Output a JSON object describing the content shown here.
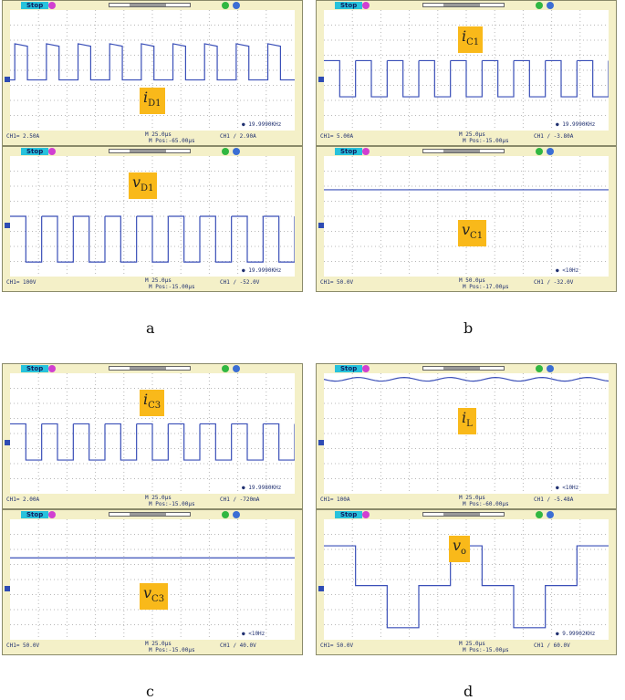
{
  "captions": [
    "a",
    "b",
    "c",
    "d"
  ],
  "status": "Stop",
  "scopes": [
    {
      "id": "a1",
      "label_main": "i",
      "label_sub": "D1",
      "ch": "CH1= 2.50A",
      "m": "M 25.0μs",
      "ch_trig": "CH1 ∕ 2.90A",
      "mpos": "M Pos:-65.00μs",
      "freq": "19.9990KHz",
      "wave": "square_current"
    },
    {
      "id": "a2",
      "label_main": "v",
      "label_sub": "D1",
      "ch": "CH1= 100V",
      "m": "M 25.0μs",
      "ch_trig": "CH1 ∕ -52.0V",
      "mpos": "M Pos:-15.00μs",
      "freq": "19.9990KHz",
      "wave": "square_voltage"
    },
    {
      "id": "b1",
      "label_main": "i",
      "label_sub": "C1",
      "ch": "CH1= 5.00A",
      "m": "M 25.0μs",
      "ch_trig": "CH1 ∕ -3.80A",
      "mpos": "M Pos:-15.00μs",
      "freq": "19.9990KHz",
      "wave": "square_cap"
    },
    {
      "id": "b2",
      "label_main": "v",
      "label_sub": "C1",
      "ch": "CH1= 50.0V",
      "m": "M 50.0μs",
      "ch_trig": "CH1 ∕ -32.0V",
      "mpos": "M Pos:-17.00μs",
      "freq": "<10Hz",
      "wave": "flat_high"
    },
    {
      "id": "c1",
      "label_main": "i",
      "label_sub": "C3",
      "ch": "CH1= 2.00A",
      "m": "M 25.0μs",
      "ch_trig": "CH1 ∕ -720mA",
      "mpos": "M Pos:-15.00μs",
      "freq": "19.9980KHz",
      "wave": "square_cap"
    },
    {
      "id": "c2",
      "label_main": "v",
      "label_sub": "C3",
      "ch": "CH1= 50.0V",
      "m": "M 25.0μs",
      "ch_trig": "CH1 ∕ 40.0V",
      "mpos": "M Pos:-15.00μs",
      "freq": "<10Hz",
      "wave": "flat_mid"
    },
    {
      "id": "d1",
      "label_main": "i",
      "label_sub": "L",
      "ch": "CH1= 100A",
      "m": "M 25.0μs",
      "ch_trig": "CH1 ∕ -5.48A",
      "mpos": "M Pos:-60.00μs",
      "freq": "<10Hz",
      "wave": "flat_top"
    },
    {
      "id": "d2",
      "label_main": "v",
      "label_sub": "o",
      "ch": "CH1= 50.0V",
      "m": "M 25.0μs",
      "ch_trig": "CH1 ∕ 60.0V",
      "mpos": "M Pos:-15.00μs",
      "freq": "9.99902KHz",
      "wave": "multilevel"
    }
  ]
}
